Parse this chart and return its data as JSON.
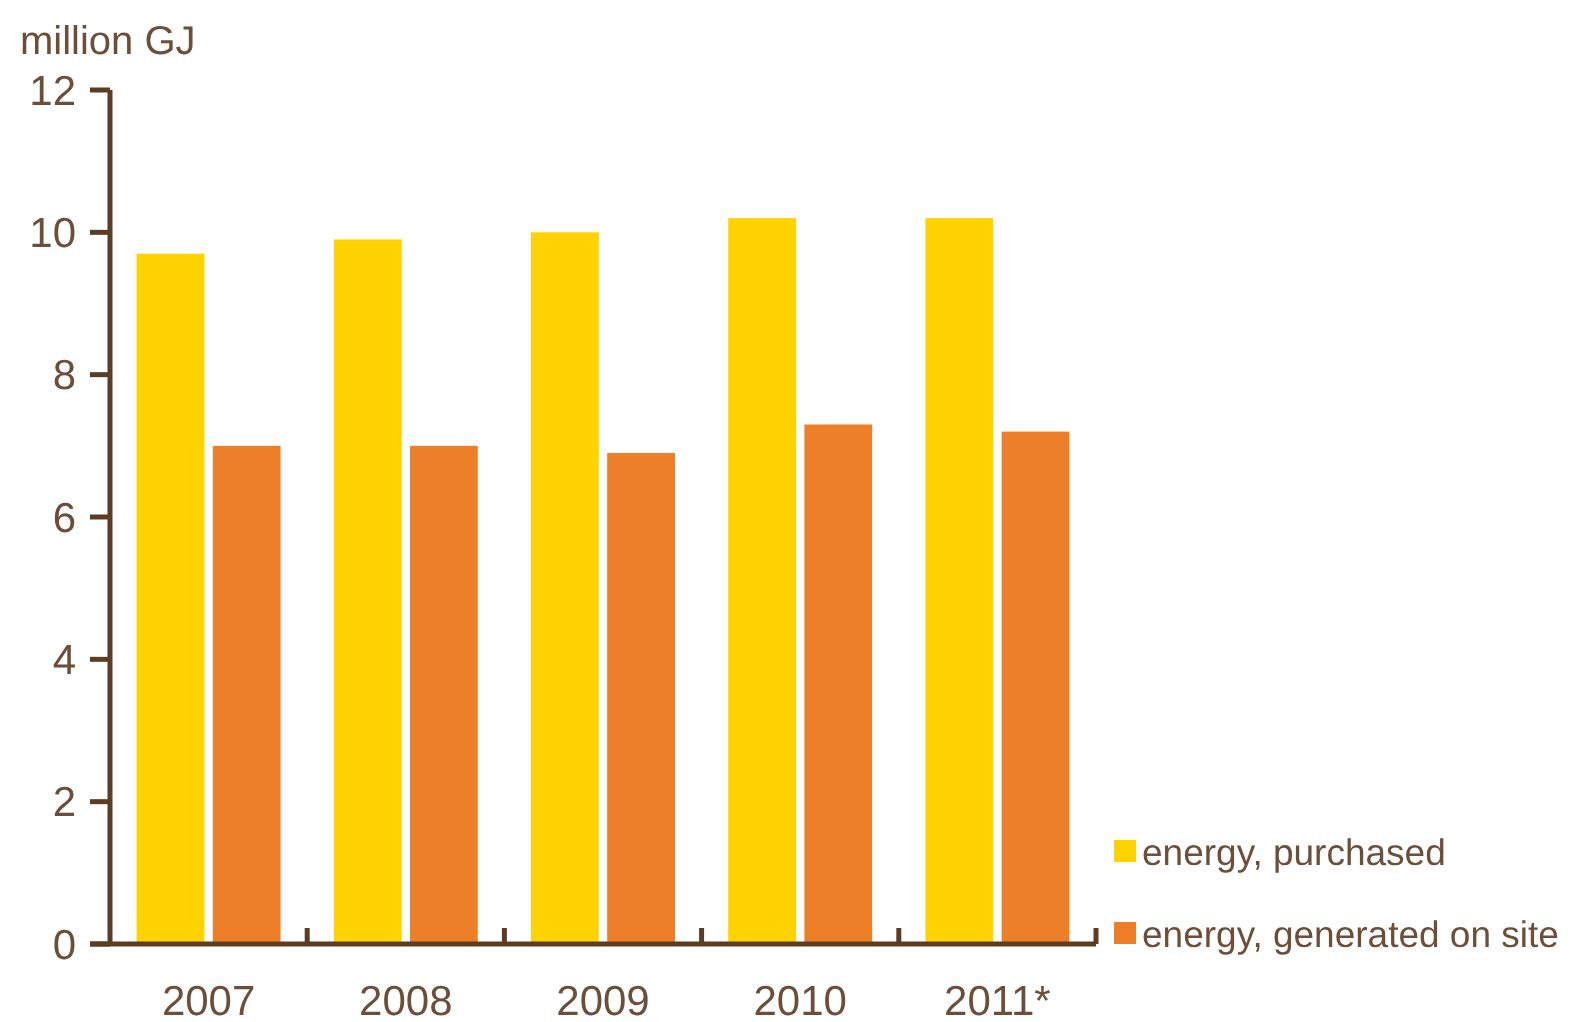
{
  "chart_data": {
    "type": "bar",
    "ylabel": "million GJ",
    "categories": [
      "2007",
      "2008",
      "2009",
      "2010",
      "2011*"
    ],
    "series": [
      {
        "name": "energy, purchased",
        "color": "#ffd200",
        "values": [
          9.7,
          9.9,
          10.0,
          10.2,
          10.2
        ]
      },
      {
        "name": "energy, generated on site",
        "color": "#ec7f28",
        "values": [
          7.0,
          7.0,
          6.9,
          7.3,
          7.2
        ]
      }
    ],
    "ylim": [
      0,
      12
    ],
    "yticks": [
      0,
      2,
      4,
      6,
      8,
      10,
      12
    ],
    "grid": false,
    "legend": "bottom right"
  }
}
